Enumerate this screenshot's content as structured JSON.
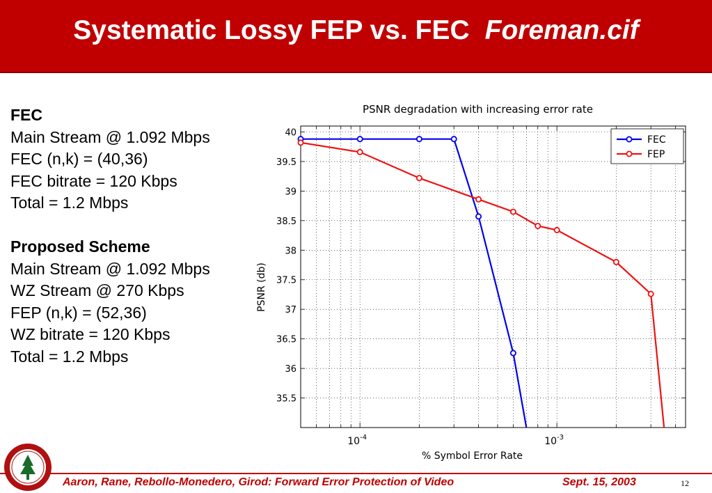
{
  "slide": {
    "title_main": "Systematic Lossy FEP vs. FEC",
    "title_italic": "Foreman.cif",
    "left_lines": [
      {
        "text": "FEC",
        "bold": true
      },
      {
        "text": "Main Stream @ 1.092 Mbps",
        "bold": false
      },
      {
        "text": "FEC (n,k) = (40,36)",
        "bold": false
      },
      {
        "text": "FEC bitrate = 120 Kbps",
        "bold": false
      },
      {
        "text": "Total = 1.2 Mbps",
        "bold": false
      },
      {
        "text": "",
        "bold": false
      },
      {
        "text": "Proposed Scheme",
        "bold": true
      },
      {
        "text": "Main Stream @ 1.092 Mbps",
        "bold": false
      },
      {
        "text": "WZ Stream  @ 270 Kbps",
        "bold": false
      },
      {
        "text": "FEP (n,k) = (52,36)",
        "bold": false
      },
      {
        "text": "WZ bitrate = 120 Kbps",
        "bold": false
      },
      {
        "text": "Total = 1.2 Mbps",
        "bold": false
      }
    ],
    "footer_authors": "Aaron, Rane, Rebollo-Monedero, Girod: Forward Error Protection of Video",
    "footer_date": "Sept. 15, 2003",
    "page_number": "12",
    "colors": {
      "accent": "#c00000",
      "fec": "#0000ee",
      "fep": "#ee1111"
    }
  },
  "chart_data": {
    "type": "line",
    "title": "PSNR degradation with increasing error rate",
    "xlabel": "% Symbol Error Rate",
    "ylabel": "PSNR (db)",
    "x_scale": "log",
    "xlim": [
      5e-05,
      0.0045
    ],
    "ylim": [
      35,
      40.1
    ],
    "x_ticks": [
      {
        "value": 0.0001,
        "base": "10",
        "exp": "-4"
      },
      {
        "value": 0.001,
        "base": "10",
        "exp": "-3"
      }
    ],
    "y_ticks": [
      "35.5",
      "36",
      "36.5",
      "37",
      "37.5",
      "38",
      "38.5",
      "39",
      "39.5",
      "40"
    ],
    "grid": true,
    "legend_position": "top-right",
    "series": [
      {
        "name": "FEC",
        "color": "#0000ee",
        "points": [
          {
            "x": 5e-05,
            "y": 39.88
          },
          {
            "x": 0.0001,
            "y": 39.88
          },
          {
            "x": 0.0002,
            "y": 39.88
          },
          {
            "x": 0.0003,
            "y": 39.88
          },
          {
            "x": 0.0004,
            "y": 38.57
          },
          {
            "x": 0.0006,
            "y": 36.26
          },
          {
            "x": 0.0007,
            "y": 35.0
          }
        ],
        "marker_count": 6
      },
      {
        "name": "FEP",
        "color": "#ee1111",
        "points": [
          {
            "x": 5e-05,
            "y": 39.82
          },
          {
            "x": 0.0001,
            "y": 39.66
          },
          {
            "x": 0.0002,
            "y": 39.22
          },
          {
            "x": 0.0004,
            "y": 38.86
          },
          {
            "x": 0.0006,
            "y": 38.65
          },
          {
            "x": 0.0008,
            "y": 38.41
          },
          {
            "x": 0.001,
            "y": 38.34
          },
          {
            "x": 0.002,
            "y": 37.8
          },
          {
            "x": 0.003,
            "y": 37.26
          },
          {
            "x": 0.0035,
            "y": 35.0
          }
        ],
        "marker_count": 9
      }
    ]
  }
}
